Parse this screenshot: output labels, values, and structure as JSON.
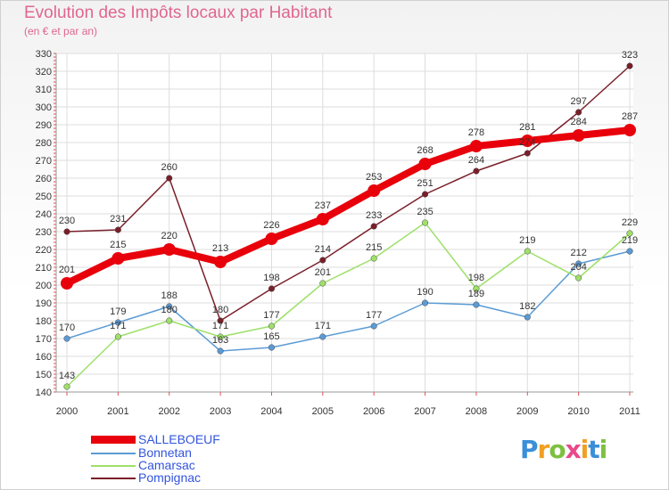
{
  "header": {
    "title": "Evolution des Impôts locaux par Habitant",
    "subtitle": "(en € et par an)"
  },
  "logo": {
    "text": "Proxiti",
    "letters": [
      {
        "ch": "P",
        "color": "#3a8fd8"
      },
      {
        "ch": "r",
        "color": "#f0a020"
      },
      {
        "ch": "o",
        "color": "#7cc040"
      },
      {
        "ch": "x",
        "color": "#e84a8a"
      },
      {
        "ch": "i",
        "color": "#f0a020"
      },
      {
        "ch": "t",
        "color": "#3a8fd8"
      },
      {
        "ch": "i",
        "color": "#7cc040"
      }
    ]
  },
  "chart_data": {
    "type": "line",
    "title": "Evolution des Impôts locaux par Habitant",
    "subtitle": "(en € et par an)",
    "xlabel": "",
    "ylabel": "",
    "categories": [
      "2000",
      "2001",
      "2002",
      "2003",
      "2004",
      "2005",
      "2006",
      "2007",
      "2008",
      "2009",
      "2010",
      "2011"
    ],
    "ylim": [
      140,
      330
    ],
    "yticks": [
      140,
      150,
      160,
      170,
      180,
      190,
      200,
      210,
      220,
      230,
      240,
      250,
      260,
      270,
      280,
      290,
      300,
      310,
      320,
      330
    ],
    "grid": true,
    "legend_position": "bottom-left",
    "series": [
      {
        "name": "SALLEBOEUF",
        "color": "#e8000b",
        "emphasis": true,
        "values": [
          201,
          215,
          220,
          213,
          226,
          237,
          253,
          268,
          278,
          281,
          284,
          287
        ],
        "labels": [
          "201",
          "215",
          "220",
          "213",
          "226",
          "237",
          "253",
          "268",
          "278",
          "281",
          "284",
          "287"
        ]
      },
      {
        "name": "Bonnetan",
        "color": "#5b9bd5",
        "emphasis": false,
        "values": [
          170,
          179,
          188,
          163,
          165,
          171,
          177,
          190,
          189,
          182,
          212,
          219
        ],
        "labels": [
          "170",
          "179",
          "188",
          "163",
          "165",
          "171",
          "177",
          "190",
          "189",
          "182",
          "212",
          "219"
        ]
      },
      {
        "name": "Camarsac",
        "color": "#9ee06a",
        "emphasis": false,
        "values": [
          143,
          171,
          180,
          171,
          177,
          201,
          215,
          235,
          198,
          219,
          204,
          229
        ],
        "labels": [
          "143",
          "171",
          "180",
          "171",
          "177",
          "201",
          "215",
          "235",
          "198",
          "219",
          "204",
          "229"
        ]
      },
      {
        "name": "Pompignac",
        "color": "#7a1f2a",
        "emphasis": false,
        "values": [
          230,
          231,
          260,
          180,
          198,
          214,
          233,
          251,
          264,
          274,
          297,
          323
        ],
        "labels": [
          "230",
          "231",
          "260",
          "180",
          "198",
          "214",
          "233",
          "251",
          "264",
          "274",
          "297",
          "323"
        ]
      }
    ]
  }
}
